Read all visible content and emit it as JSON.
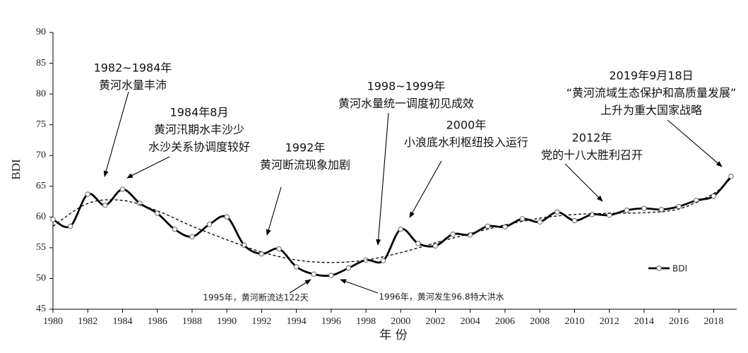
{
  "chart_data": {
    "type": "line",
    "y_label": "BDI",
    "x_label": "年 份",
    "x": [
      1980,
      1981,
      1982,
      1983,
      1984,
      1985,
      1986,
      1987,
      1988,
      1989,
      1990,
      1991,
      1992,
      1993,
      1994,
      1995,
      1996,
      1997,
      1998,
      1999,
      2000,
      2001,
      2002,
      2003,
      2004,
      2005,
      2006,
      2007,
      2008,
      2009,
      2010,
      2011,
      2012,
      2013,
      2014,
      2015,
      2016,
      2017,
      2018,
      2019
    ],
    "series": [
      {
        "name": "BDI",
        "color": "#000000",
        "values": [
          59.6,
          58.5,
          63.7,
          61.9,
          64.5,
          62.2,
          60.6,
          58.0,
          56.8,
          58.8,
          60.0,
          55.4,
          54.0,
          54.8,
          51.9,
          50.7,
          50.5,
          51.7,
          53.0,
          52.9,
          58.0,
          55.7,
          55.3,
          57.2,
          57.1,
          58.5,
          58.4,
          59.7,
          59.2,
          60.8,
          59.4,
          60.4,
          60.3,
          61.1,
          61.4,
          61.2,
          61.7,
          62.7,
          63.4,
          66.6
        ]
      },
      {
        "color": "#000000",
        "dashed": true,
        "x": [
          1980,
          1982,
          1984,
          1986,
          1988,
          1990,
          1992,
          1994,
          1996,
          1998,
          2000,
          2002,
          2004,
          2006,
          2008,
          2010,
          2012,
          2014,
          2016,
          2018,
          2019
        ],
        "values": [
          58.5,
          62.2,
          62.7,
          61.0,
          58.5,
          56.3,
          54.3,
          53.0,
          52.6,
          53.0,
          54.2,
          55.8,
          57.3,
          58.7,
          59.8,
          60.4,
          60.6,
          60.7,
          61.3,
          63.8,
          66.3
        ]
      }
    ],
    "xlim": [
      1980,
      2019
    ],
    "xticks": [
      1980,
      1982,
      1984,
      1986,
      1988,
      1990,
      1992,
      1994,
      1996,
      1998,
      2000,
      2002,
      2004,
      2006,
      2008,
      2010,
      2012,
      2014,
      2016,
      2018
    ],
    "ylim": [
      45,
      90
    ],
    "yticks": [
      45,
      50,
      55,
      60,
      65,
      70,
      75,
      80,
      85,
      90
    ],
    "grid": false,
    "legend": "right",
    "annotations": [
      {
        "lines": [
          "1982~1984年",
          "黄河水量丰沛"
        ]
      },
      {
        "lines": [
          "1984年8月",
          "黄河汛期水丰沙少",
          "水沙关系协调度较好"
        ]
      },
      {
        "lines": [
          "1992年",
          "黄河断流现象加剧"
        ]
      },
      {
        "lines": [
          "1998~1999年",
          "黄河水量统一调度初见成效"
        ]
      },
      {
        "lines": [
          "2000年",
          "小浪底水利枢纽投入运行"
        ]
      },
      {
        "lines": [
          "2012年",
          "党的十八大胜利召开"
        ]
      },
      {
        "lines": [
          "2019年9月18日",
          "“黄河流域生态保护和高质量发展”",
          "上升为重大国家战略"
        ]
      },
      {
        "lines": [
          "1995年，黄河断流达122天"
        ]
      },
      {
        "lines": [
          "1996年，黄河发生96.8特大洪水"
        ]
      }
    ]
  }
}
